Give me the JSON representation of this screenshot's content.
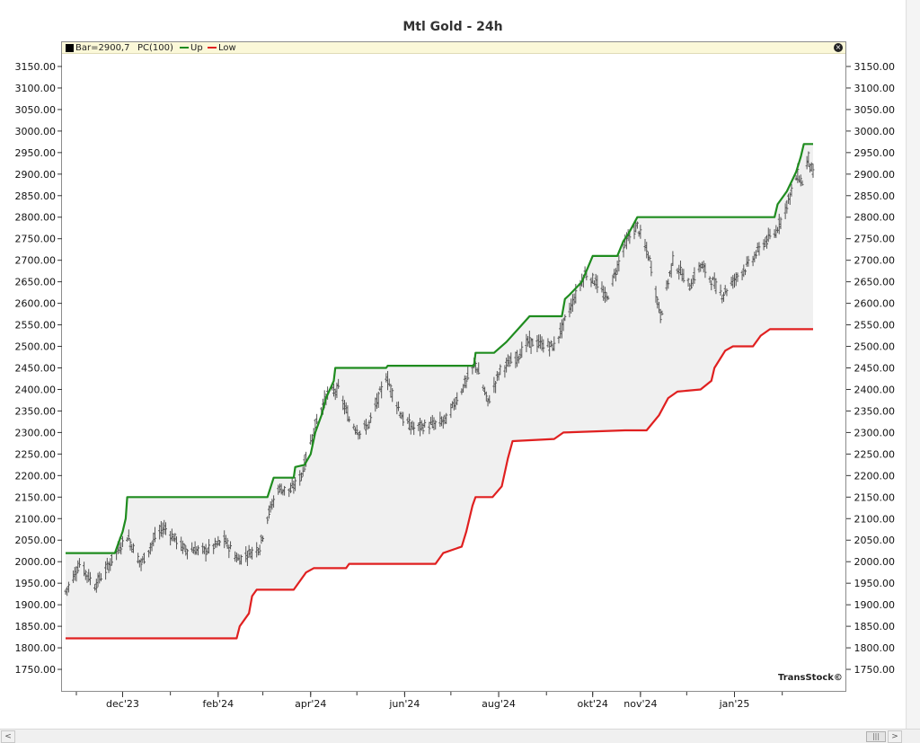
{
  "chart_data": {
    "type": "ohlc",
    "title": "Mtl Gold - 24h",
    "legend": [
      {
        "label": "Bar=2900,7",
        "color": "#000000"
      },
      {
        "label": "PC(100)",
        "color": ""
      },
      {
        "label": "Up",
        "color": "#1f8c1f"
      },
      {
        "label": "Low",
        "color": "#e02020"
      }
    ],
    "y_axis": {
      "min": 1700,
      "max": 3175,
      "ticks": [
        1750,
        1800,
        1850,
        1900,
        1950,
        2000,
        2050,
        2100,
        2150,
        2200,
        2250,
        2300,
        2350,
        2400,
        2450,
        2500,
        2550,
        2600,
        2650,
        2700,
        2750,
        2800,
        2850,
        2900,
        2950,
        3000,
        3050,
        3100,
        3150
      ],
      "tick_labels": [
        "1750.00",
        "1800.00",
        "1850.00",
        "1900.00",
        "1950.00",
        "2000.00",
        "2050.00",
        "2100.00",
        "2150.00",
        "2200.00",
        "2250.00",
        "2300.00",
        "2350.00",
        "2400.00",
        "2450.00",
        "2500.00",
        "2550.00",
        "2600.00",
        "2650.00",
        "2700.00",
        "2750.00",
        "2800.00",
        "2850.00",
        "2900.00",
        "2950.00",
        "3000.00",
        "3050.00",
        "3100.00",
        "3150.00"
      ]
    },
    "x_axis": {
      "start": "2023-10-25",
      "end": "2025-02-21",
      "ticks": [
        {
          "date": "2023-12-01",
          "label": "dec'23"
        },
        {
          "date": "2024-02-01",
          "label": "feb'24"
        },
        {
          "date": "2024-04-01",
          "label": "apr'24"
        },
        {
          "date": "2024-06-01",
          "label": "jun'24"
        },
        {
          "date": "2024-08-01",
          "label": "aug'24"
        },
        {
          "date": "2024-10-01",
          "label": "okt'24"
        },
        {
          "date": "2024-11-01",
          "label": "nov'24"
        },
        {
          "date": "2025-01-01",
          "label": "jan'25"
        }
      ]
    },
    "close_path": [
      [
        "2023-10-25",
        1930
      ],
      [
        "2023-11-03",
        1995
      ],
      [
        "2023-11-13",
        1945
      ],
      [
        "2023-11-20",
        1980
      ],
      [
        "2023-11-30",
        2040
      ],
      [
        "2023-12-04",
        2060
      ],
      [
        "2023-12-13",
        1995
      ],
      [
        "2023-12-22",
        2055
      ],
      [
        "2023-12-28",
        2080
      ],
      [
        "2024-01-10",
        2030
      ],
      [
        "2024-01-24",
        2025
      ],
      [
        "2024-02-05",
        2050
      ],
      [
        "2024-02-14",
        2005
      ],
      [
        "2024-02-28",
        2035
      ],
      [
        "2024-03-04",
        2105
      ],
      [
        "2024-03-11",
        2170
      ],
      [
        "2024-03-19",
        2165
      ],
      [
        "2024-03-26",
        2200
      ],
      [
        "2024-04-05",
        2330
      ],
      [
        "2024-04-12",
        2390
      ],
      [
        "2024-04-19",
        2400
      ],
      [
        "2024-04-26",
        2330
      ],
      [
        "2024-05-03",
        2300
      ],
      [
        "2024-05-09",
        2320
      ],
      [
        "2024-05-20",
        2430
      ],
      [
        "2024-05-31",
        2330
      ],
      [
        "2024-06-07",
        2310
      ],
      [
        "2024-06-21",
        2320
      ],
      [
        "2024-06-28",
        2330
      ],
      [
        "2024-07-05",
        2380
      ],
      [
        "2024-07-17",
        2460
      ],
      [
        "2024-07-25",
        2370
      ],
      [
        "2024-08-02",
        2445
      ],
      [
        "2024-08-13",
        2475
      ],
      [
        "2024-08-20",
        2510
      ],
      [
        "2024-09-06",
        2500
      ],
      [
        "2024-09-20",
        2620
      ],
      [
        "2024-09-26",
        2670
      ],
      [
        "2024-10-03",
        2650
      ],
      [
        "2024-10-10",
        2610
      ],
      [
        "2024-10-22",
        2740
      ],
      [
        "2024-10-30",
        2780
      ],
      [
        "2024-11-07",
        2700
      ],
      [
        "2024-11-14",
        2570
      ],
      [
        "2024-11-22",
        2700
      ],
      [
        "2024-12-03",
        2640
      ],
      [
        "2024-12-10",
        2690
      ],
      [
        "2024-12-18",
        2650
      ],
      [
        "2024-12-24",
        2620
      ],
      [
        "2025-01-02",
        2660
      ],
      [
        "2025-01-10",
        2690
      ],
      [
        "2025-01-20",
        2740
      ],
      [
        "2025-01-27",
        2760
      ],
      [
        "2025-02-03",
        2820
      ],
      [
        "2025-02-11",
        2900
      ],
      [
        "2025-02-14",
        2880
      ],
      [
        "2025-02-18",
        2940
      ],
      [
        "2025-02-21",
        2900
      ]
    ],
    "upper_band": [
      [
        "2023-10-25",
        2020
      ],
      [
        "2023-11-26",
        2020
      ],
      [
        "2023-11-28",
        2040
      ],
      [
        "2023-12-01",
        2070
      ],
      [
        "2023-12-03",
        2100
      ],
      [
        "2023-12-04",
        2150
      ],
      [
        "2024-03-04",
        2150
      ],
      [
        "2024-03-08",
        2195
      ],
      [
        "2024-03-21",
        2195
      ],
      [
        "2024-03-22",
        2220
      ],
      [
        "2024-03-28",
        2225
      ],
      [
        "2024-04-01",
        2250
      ],
      [
        "2024-04-04",
        2300
      ],
      [
        "2024-04-08",
        2340
      ],
      [
        "2024-04-11",
        2380
      ],
      [
        "2024-04-16",
        2420
      ],
      [
        "2024-04-17",
        2450
      ],
      [
        "2024-05-20",
        2450
      ],
      [
        "2024-05-21",
        2455
      ],
      [
        "2024-07-16",
        2455
      ],
      [
        "2024-07-17",
        2485
      ],
      [
        "2024-07-29",
        2485
      ],
      [
        "2024-08-06",
        2510
      ],
      [
        "2024-08-16",
        2550
      ],
      [
        "2024-08-21",
        2570
      ],
      [
        "2024-09-11",
        2570
      ],
      [
        "2024-09-13",
        2610
      ],
      [
        "2024-09-16",
        2620
      ],
      [
        "2024-09-24",
        2650
      ],
      [
        "2024-10-01",
        2710
      ],
      [
        "2024-10-17",
        2710
      ],
      [
        "2024-10-21",
        2745
      ],
      [
        "2024-10-24",
        2760
      ],
      [
        "2024-10-30",
        2800
      ],
      [
        "2025-01-27",
        2800
      ],
      [
        "2025-01-29",
        2830
      ],
      [
        "2025-02-04",
        2860
      ],
      [
        "2025-02-08",
        2890
      ],
      [
        "2025-02-10",
        2905
      ],
      [
        "2025-02-13",
        2940
      ],
      [
        "2025-02-15",
        2970
      ],
      [
        "2025-02-21",
        2970
      ]
    ],
    "lower_band": [
      [
        "2023-10-25",
        1822
      ],
      [
        "2024-02-13",
        1822
      ],
      [
        "2024-02-15",
        1850
      ],
      [
        "2024-02-21",
        1880
      ],
      [
        "2024-02-23",
        1920
      ],
      [
        "2024-02-26",
        1935
      ],
      [
        "2024-03-21",
        1935
      ],
      [
        "2024-03-26",
        1960
      ],
      [
        "2024-03-29",
        1975
      ],
      [
        "2024-04-03",
        1985
      ],
      [
        "2024-04-24",
        1985
      ],
      [
        "2024-04-26",
        1995
      ],
      [
        "2024-06-21",
        1995
      ],
      [
        "2024-06-26",
        2020
      ],
      [
        "2024-07-08",
        2035
      ],
      [
        "2024-07-11",
        2070
      ],
      [
        "2024-07-15",
        2130
      ],
      [
        "2024-07-17",
        2150
      ],
      [
        "2024-07-28",
        2150
      ],
      [
        "2024-08-03",
        2175
      ],
      [
        "2024-08-07",
        2240
      ],
      [
        "2024-08-10",
        2280
      ],
      [
        "2024-09-06",
        2285
      ],
      [
        "2024-09-12",
        2300
      ],
      [
        "2024-10-22",
        2305
      ],
      [
        "2024-11-05",
        2305
      ],
      [
        "2024-11-13",
        2340
      ],
      [
        "2024-11-19",
        2380
      ],
      [
        "2024-11-25",
        2395
      ],
      [
        "2024-12-10",
        2400
      ],
      [
        "2024-12-17",
        2420
      ],
      [
        "2024-12-19",
        2450
      ],
      [
        "2024-12-26",
        2490
      ],
      [
        "2024-12-31",
        2500
      ],
      [
        "2025-01-13",
        2500
      ],
      [
        "2025-01-18",
        2525
      ],
      [
        "2025-01-24",
        2540
      ],
      [
        "2025-02-21",
        2540
      ]
    ],
    "colors": {
      "bars": "#555555",
      "upper": "#1f8c1f",
      "lower": "#e02020",
      "band_fill": "#f0f0f0",
      "legend_bg": "#fbf8d8"
    },
    "grid": false,
    "legend_position": "top-left"
  },
  "watermark": "TransStock©",
  "scrollbar": {
    "left_arrow": "<",
    "right_arrow": ">",
    "thumb_glyph": "|||"
  }
}
